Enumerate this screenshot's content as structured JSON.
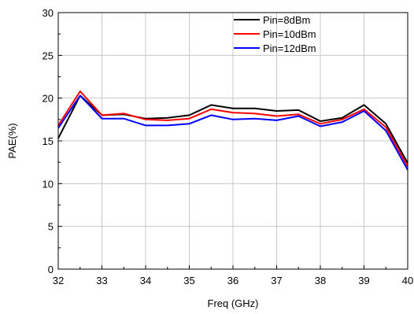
{
  "chart_data": {
    "type": "line",
    "xlabel": "Freq (GHz)",
    "ylabel": "PAE(%)",
    "xlim": [
      32,
      40
    ],
    "ylim": [
      0,
      30
    ],
    "xticks": [
      32,
      33,
      34,
      35,
      36,
      37,
      38,
      39,
      40
    ],
    "yticks": [
      0,
      5,
      10,
      15,
      20,
      25,
      30
    ],
    "grid": true,
    "legend_position": "top-right",
    "x": [
      32,
      32.5,
      33,
      33.5,
      34,
      34.5,
      35,
      35.5,
      36,
      36.5,
      37,
      37.5,
      38,
      38.5,
      39,
      39.5,
      40
    ],
    "series": [
      {
        "name": "Pin=8dBm",
        "color": "#000000",
        "values": [
          15.3,
          20.3,
          18.0,
          18.1,
          17.6,
          17.7,
          18.0,
          19.2,
          18.8,
          18.8,
          18.5,
          18.6,
          17.3,
          17.7,
          19.2,
          17.0,
          12.4
        ]
      },
      {
        "name": "Pin=10dBm",
        "color": "#ff0000",
        "values": [
          16.8,
          20.8,
          18.0,
          18.2,
          17.5,
          17.4,
          17.6,
          18.7,
          18.3,
          18.2,
          17.9,
          18.1,
          17.0,
          17.5,
          18.7,
          16.6,
          12.0
        ]
      },
      {
        "name": "Pin=12dBm",
        "color": "#0000ff",
        "values": [
          16.5,
          20.3,
          17.6,
          17.6,
          16.8,
          16.8,
          17.0,
          18.0,
          17.5,
          17.6,
          17.4,
          17.9,
          16.7,
          17.2,
          18.5,
          16.2,
          11.6
        ]
      }
    ]
  }
}
